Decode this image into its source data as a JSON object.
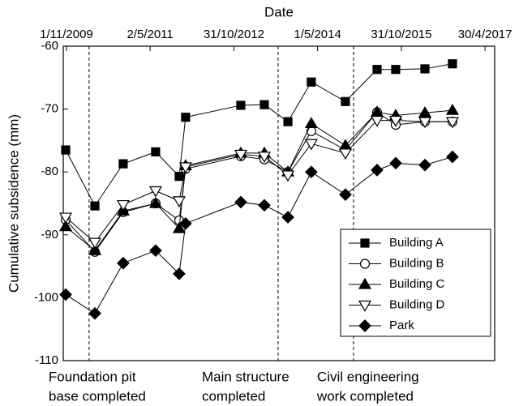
{
  "chart_data": {
    "type": "line",
    "xlabel": "Date",
    "ylabel": "Cumulative subsidence (mm)",
    "x": [
      "2009-10-27",
      "2010-05-06",
      "2010-11-07",
      "2011-06-07",
      "2011-11-08",
      "2011-12-20",
      "2012-12-15",
      "2013-05-18",
      "2013-10-19",
      "2014-03-21",
      "2014-10-30",
      "2015-05-25",
      "2015-09-24",
      "2016-04-02",
      "2016-09-29"
    ],
    "series": [
      {
        "name": "Building A",
        "color": "#000000",
        "marker": "square",
        "filled": true,
        "values": [
          -76.5,
          -85.4,
          -78.7,
          -76.8,
          -80.7,
          -71.3,
          -69.4,
          -69.3,
          -72.0,
          -65.7,
          -68.8,
          -63.7,
          -63.7,
          -63.6,
          -62.8
        ]
      },
      {
        "name": "Building B",
        "color": "#000000",
        "marker": "circle",
        "filled": false,
        "values": [
          -87.6,
          -92.7,
          -86.4,
          -85.0,
          -87.7,
          -79.5,
          -77.5,
          -78.0,
          -80.0,
          -73.5,
          -76.5,
          -70.5,
          -72.5,
          -72.0,
          -72.0
        ]
      },
      {
        "name": "Building C",
        "color": "#000000",
        "marker": "triangle-up",
        "filled": true,
        "values": [
          -88.7,
          -92.5,
          -86.2,
          -85.0,
          -89.0,
          -79.0,
          -77.0,
          -77.0,
          -80.0,
          -72.3,
          -75.8,
          -70.5,
          -71.0,
          -70.6,
          -70.2
        ]
      },
      {
        "name": "Building D",
        "color": "#000000",
        "marker": "triangle-down",
        "filled": false,
        "values": [
          -87.2,
          -91.2,
          -85.2,
          -83.0,
          -84.6,
          -79.2,
          -77.2,
          -77.5,
          -80.5,
          -75.5,
          -77.0,
          -71.8,
          -71.8,
          -72.0,
          -72.0
        ]
      },
      {
        "name": "Park",
        "color": "#000000",
        "marker": "diamond",
        "filled": true,
        "values": [
          -99.5,
          -102.5,
          -94.5,
          -92.5,
          -96.2,
          -88.2,
          -84.8,
          -85.3,
          -87.2,
          -80.0,
          -83.6,
          -79.7,
          -78.6,
          -78.9,
          -77.6
        ]
      }
    ],
    "xlim": [
      "2009-10-11",
      "2017-07-02"
    ],
    "xticks": [
      {
        "value": "2009-11-01",
        "label": "1/11/2009"
      },
      {
        "value": "2011-05-02",
        "label": "2/5/2011"
      },
      {
        "value": "2012-10-31",
        "label": "31/10/2012"
      },
      {
        "value": "2014-05-01",
        "label": "1/5/2014"
      },
      {
        "value": "2015-10-31",
        "label": "31/10/2015"
      },
      {
        "value": "2017-04-30",
        "label": "30/4/2017"
      }
    ],
    "ylim": [
      -110,
      -60
    ],
    "yticks": [
      -110,
      -100,
      -90,
      -80,
      -70,
      -60
    ],
    "legend": "lower right",
    "annotations": [
      {
        "x": "2010-03-29",
        "lines": [
          "Foundation pit",
          "base completed"
        ]
      },
      {
        "x": "2013-08-16",
        "lines": [
          "Main structure",
          "completed"
        ]
      },
      {
        "x": "2014-12-22",
        "lines": [
          "Civil engineering",
          "work completed"
        ]
      }
    ]
  }
}
